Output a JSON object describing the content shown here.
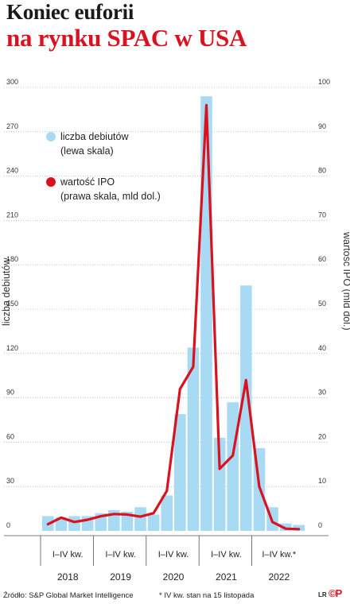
{
  "title_line1": "Koniec euforii",
  "title_line2": "na rynku SPAC w USA",
  "footer": {
    "source": "Źródło: S&P Global Market Intelligence",
    "note": "* IV kw. stan na 15 listopada",
    "credit": "LR",
    "logo": "©P"
  },
  "colors": {
    "bars": "#a9daf3",
    "line": "#d9121f",
    "title_accent": "#d9121f",
    "gridline": "#9a9a9a"
  },
  "chart_data": {
    "type": "bar",
    "left_axis_title": "liczba debiutów",
    "right_axis_title": "wartość IPO (mld dol.)",
    "left_ticks": [
      "0",
      "30",
      "60",
      "90",
      "120",
      "150",
      "180",
      "210",
      "240",
      "270",
      "300"
    ],
    "right_ticks": [
      "0",
      "10",
      "20",
      "30",
      "40",
      "50",
      "60",
      "70",
      "80",
      "90",
      "100"
    ],
    "ylim_left": [
      0,
      300
    ],
    "ylim_right": [
      0,
      100
    ],
    "quarter_labels": [
      "I–IV kw.",
      "I–IV kw.",
      "I–IV kw.",
      "I–IV kw.",
      "I–IV kw.*"
    ],
    "years": [
      "2018",
      "2019",
      "2020",
      "2021",
      "2022"
    ],
    "legend": [
      {
        "label": "liczba debiutów",
        "sub": "(lewa skala)",
        "color": "#a9daf3",
        "kind": "dot"
      },
      {
        "label": "wartość IPO",
        "sub": "(prawa skala, mld dol.)",
        "color": "#d9121f",
        "kind": "dot-red"
      }
    ],
    "grid": true,
    "legend_position": "top-left",
    "series": [
      {
        "name": "liczba debiutów",
        "axis": "left",
        "type": "bar",
        "values": [
          10,
          9,
          10,
          10,
          12,
          14,
          13,
          16,
          11,
          24,
          79,
          124,
          294,
          63,
          87,
          166,
          56,
          16,
          5,
          4
        ]
      },
      {
        "name": "wartość IPO",
        "axis": "right",
        "type": "line",
        "values": [
          1.5,
          3.0,
          2.0,
          2.5,
          3.3,
          3.8,
          3.7,
          3.2,
          4.0,
          9.0,
          32,
          37,
          96,
          14,
          17,
          34,
          10,
          2,
          0.5,
          0.4
        ]
      }
    ]
  }
}
